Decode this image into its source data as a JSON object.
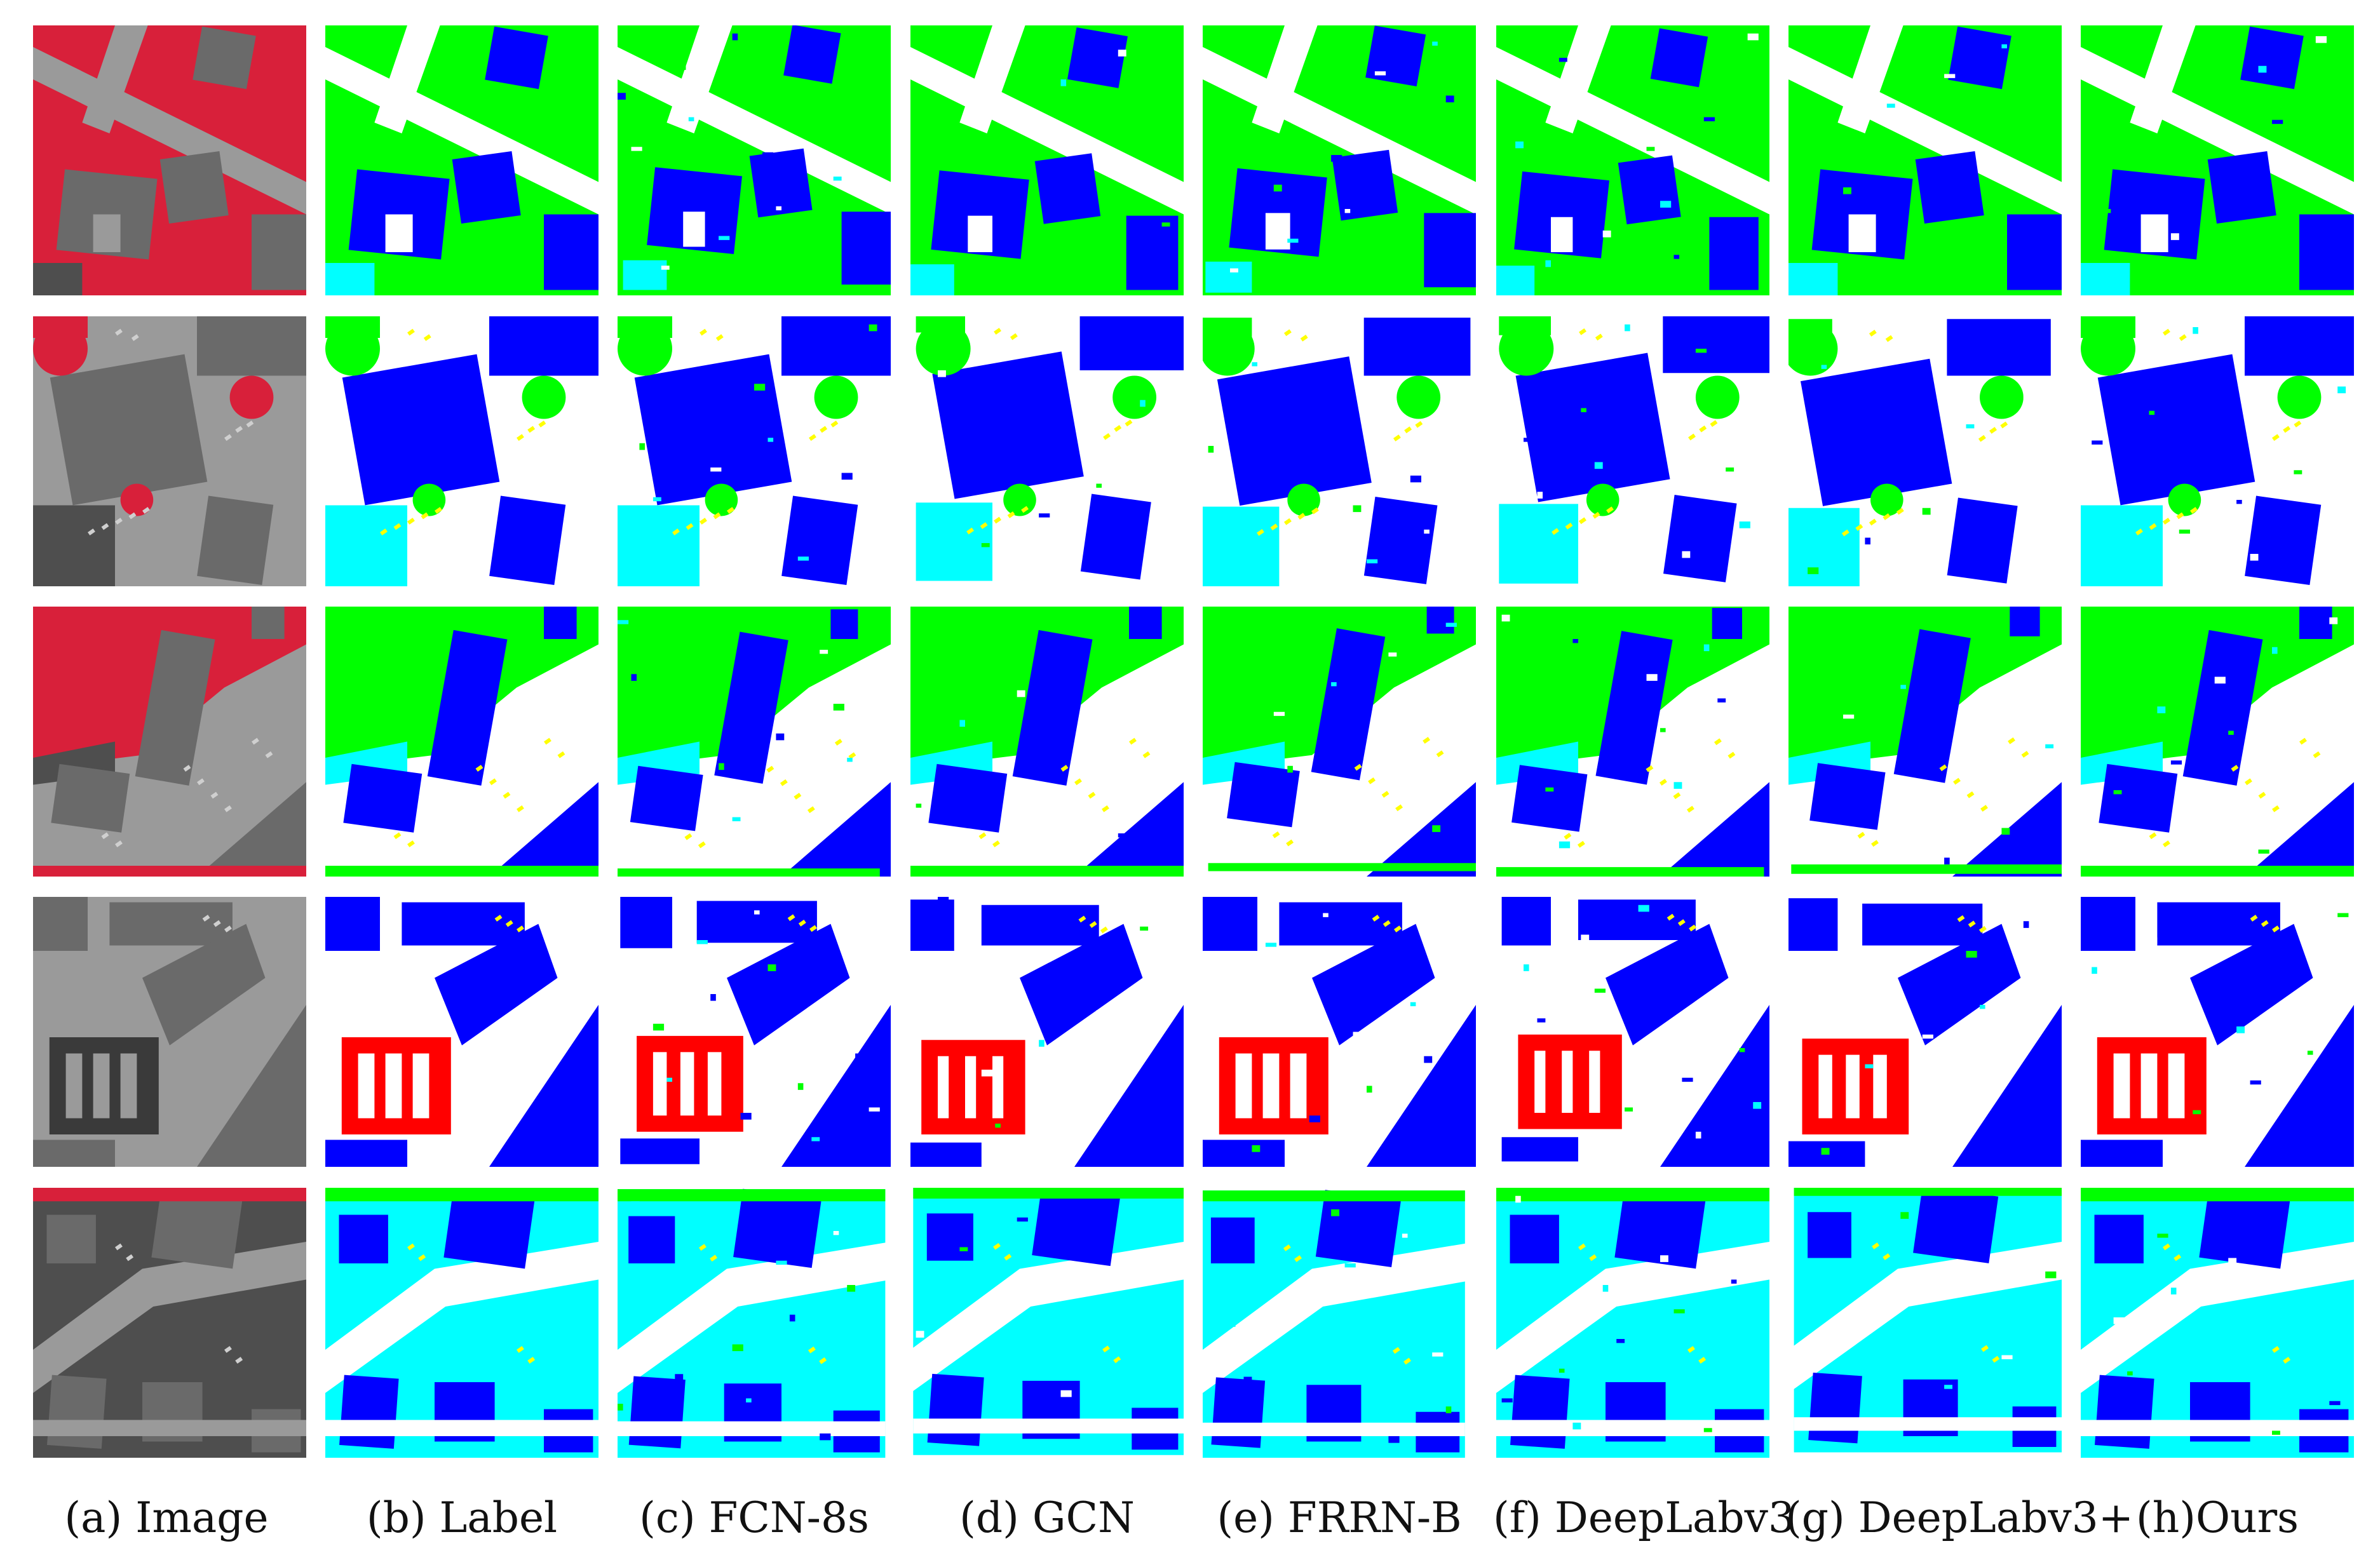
{
  "columns": [
    {
      "id": "image",
      "caption": "(a) Image"
    },
    {
      "id": "label",
      "caption": "(b) Label"
    },
    {
      "id": "fcn8s",
      "caption": "(c) FCN-8s"
    },
    {
      "id": "gcn",
      "caption": "(d) GCN"
    },
    {
      "id": "frrnb",
      "caption": "(e) FRRN-B"
    },
    {
      "id": "deeplabv3",
      "caption": "(f) DeepLabv3"
    },
    {
      "id": "deeplabv3plus",
      "caption": "(g) DeepLabv3+"
    },
    {
      "id": "ours",
      "caption": "(h)Ours"
    }
  ],
  "rows": 5,
  "class_colors": {
    "impervious": "#ffffff",
    "building": "#0000ff",
    "low-vegetation": "#00ffff",
    "tree": "#00ff00",
    "car": "#ffff00",
    "clutter": "#ff0000"
  },
  "image_colors": {
    "vegetation": "#d8203a",
    "roof": "#6a6a6a",
    "road": "#9a9a9a",
    "ground": "#4e4e4e"
  }
}
